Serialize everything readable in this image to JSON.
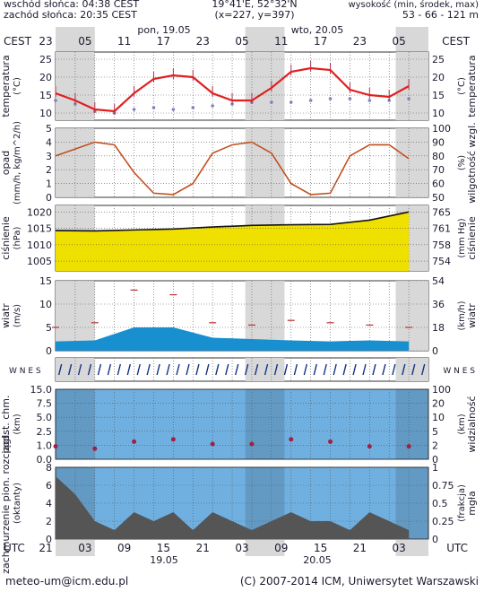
{
  "header": {
    "sunrise": "wschód słońca: 04:38 CEST",
    "sunset": "zachód słońca: 20:35 CEST",
    "coords": "19°41'E, 52°32'N",
    "grid": "(x=227, y=397)",
    "height_label": "wysokość (min, środek, max)",
    "height_values": "53 - 66 - 121 m"
  },
  "time_axis": {
    "tz_label": "CEST",
    "day1": "pon, 19.05",
    "day2": "wto, 20.05",
    "top_hours": [
      "23",
      "05",
      "11",
      "17",
      "23",
      "05",
      "11",
      "17",
      "23",
      "05"
    ],
    "utc_label": "UTC",
    "bottom_hours": [
      "21",
      "03",
      "09",
      "15",
      "21",
      "03",
      "09",
      "15",
      "21",
      "03"
    ],
    "bottom_date1": "19.05",
    "bottom_date2": "20.05"
  },
  "panels": {
    "temperature": {
      "label_left": "temperatura",
      "unit_left": "(°C)",
      "label_right": "temperatura",
      "unit_right": "(°C)",
      "ticks": [
        "25",
        "20",
        "15",
        "10"
      ]
    },
    "precip": {
      "label_left": "opad",
      "unit_left": "(mm/h, kg/m^2/h)",
      "label_right": "wilgotność wzgl.",
      "unit_right": "(%)",
      "ticks_left": [
        "5",
        "4",
        "3",
        "2",
        "1",
        "0"
      ],
      "ticks_right": [
        "100",
        "90",
        "80",
        "70",
        "60",
        "50"
      ]
    },
    "pressure": {
      "label_left": "ciśnienie",
      "unit_left": "(hPa)",
      "label_right": "ciśnienie",
      "unit_right": "(mm Hg)",
      "ticks_left": [
        "1020",
        "1015",
        "1010",
        "1005"
      ],
      "ticks_right": [
        "765",
        "761",
        "758",
        "754"
      ]
    },
    "wind": {
      "label_left": "wiatr",
      "unit_left": "(m/s)",
      "label_right": "wiatr",
      "unit_right": "(km/h)",
      "ticks_left": [
        "15",
        "10",
        "5",
        "0"
      ],
      "ticks_right": [
        "54",
        "36",
        "18",
        "0"
      ]
    },
    "wind_dir": {
      "compass_left": "W N E S",
      "compass_right": "W N E S"
    },
    "cloud_base": {
      "label_left": "podst. chm.",
      "unit_left": "(km)",
      "label_right": "widzialność",
      "unit_right": "(km)",
      "ticks_left": [
        "15.0",
        "7.5",
        "5.0",
        "2.5",
        "1.0",
        "0.0"
      ],
      "ticks_right": [
        "100",
        "20",
        "10",
        "5",
        "2",
        "0"
      ]
    },
    "cloud_cover": {
      "label_left": "zachmurzenie pion. rozciągł.",
      "unit_left": "(oktanty)",
      "label_right": "mgła",
      "unit_right": "(frakcja)",
      "ticks_left": [
        "8",
        "6",
        "4",
        "2",
        "0"
      ],
      "ticks_right": [
        "1",
        "0.75",
        "0.5",
        "0.25",
        "0"
      ]
    }
  },
  "footer": {
    "email": "meteo-um@icm.edu.pl",
    "copyright": "(C) 2007-2014 ICM, Uniwersytet Warszawski"
  },
  "colors": {
    "night_band": "#d8d8d8",
    "temp_line": "#e02020",
    "dew_point": "#8080c0",
    "humidity": "#c05020",
    "pressure_fill": "#f0e000",
    "wind_fill": "#1890d0",
    "wind_dark": "#103080",
    "cloud_bg": "#70b0e0",
    "axis_text": "#1a1a2e"
  },
  "chart_data": [
    {
      "type": "line",
      "name": "temperature",
      "x_hours_from_start": [
        0,
        3,
        6,
        9,
        12,
        15,
        18,
        21,
        24,
        27,
        30,
        33,
        36,
        39,
        42,
        45,
        48,
        51,
        54
      ],
      "series": [
        {
          "name": "",
          "values": [
            15.5,
            13.5,
            11.0,
            10.5,
            15.5,
            19.5,
            20.5,
            20.0,
            15.5,
            13.5,
            13.5,
            17.0,
            21.5,
            22.5,
            22.0,
            16.5,
            15.0,
            14.5,
            17.5
          ]
        },
        {
          "name": "",
          "values": [
            13.5,
            12.5,
            10.5,
            10.0,
            11.0,
            11.5,
            11.0,
            11.5,
            12.0,
            12.5,
            13.0,
            13.0,
            13.0,
            13.5,
            14.0,
            14.0,
            13.5,
            13.5,
            14.0
          ]
        }
      ],
      "ylim": [
        8,
        27
      ]
    },
    {
      "type": "line",
      "name": "humidity",
      "x_hours_from_start": [
        0,
        3,
        6,
        9,
        12,
        15,
        18,
        21,
        24,
        27,
        30,
        33,
        36,
        39,
        42,
        45,
        48,
        51,
        54
      ],
      "series": [
        {
          "name": "",
          "values": [
            80,
            85,
            90,
            88,
            68,
            53,
            52,
            60,
            82,
            88,
            90,
            82,
            60,
            52,
            53,
            80,
            88,
            88,
            78
          ]
        }
      ],
      "ylim": [
        50,
        100
      ]
    },
    {
      "type": "area",
      "name": "pressure",
      "x_hours_from_start": [
        0,
        6,
        12,
        18,
        24,
        30,
        36,
        42,
        48,
        54
      ],
      "series": [
        {
          "name": "",
          "values": [
            1014.3,
            1014.2,
            1014.5,
            1014.8,
            1015.4,
            1015.9,
            1016.1,
            1016.2,
            1017.5,
            1020.0
          ]
        }
      ],
      "ylim": [
        1002,
        1022
      ]
    },
    {
      "type": "area",
      "name": "wind",
      "x_hours_from_start": [
        0,
        6,
        12,
        18,
        24,
        30,
        36,
        42,
        48,
        54
      ],
      "series": [
        {
          "name": "",
          "values": [
            2.0,
            2.2,
            5.0,
            5.0,
            2.8,
            2.5,
            2.2,
            2.0,
            2.2,
            2.0
          ]
        },
        {
          "name": "",
          "values": [
            5.0,
            6.0,
            13.0,
            12.0,
            6.0,
            5.5,
            6.5,
            6.0,
            5.5,
            5.0
          ]
        }
      ],
      "ylim": [
        0,
        15
      ]
    },
    {
      "type": "scatter",
      "name": "cloud_base_visibility",
      "x_hours_from_start": [
        0,
        6,
        12,
        18,
        24,
        30,
        36,
        42,
        48,
        54
      ],
      "series": [
        {
          "name": "",
          "values": [
            2.0,
            1.5,
            3.0,
            3.5,
            2.5,
            2.5,
            3.5,
            3.0,
            2.0,
            2.0
          ]
        }
      ],
      "ylim": [
        0,
        15
      ]
    },
    {
      "type": "area",
      "name": "cloud_cover",
      "x_hours_from_start": [
        0,
        3,
        6,
        9,
        12,
        15,
        18,
        21,
        24,
        27,
        30,
        33,
        36,
        39,
        42,
        45,
        48,
        51,
        54
      ],
      "series": [
        {
          "name": "",
          "values": [
            7,
            5,
            2,
            1,
            3,
            2,
            3,
            1,
            3,
            2,
            1,
            2,
            3,
            2,
            2,
            1,
            3,
            2,
            1
          ]
        }
      ],
      "ylim": [
        0,
        8
      ]
    }
  ]
}
